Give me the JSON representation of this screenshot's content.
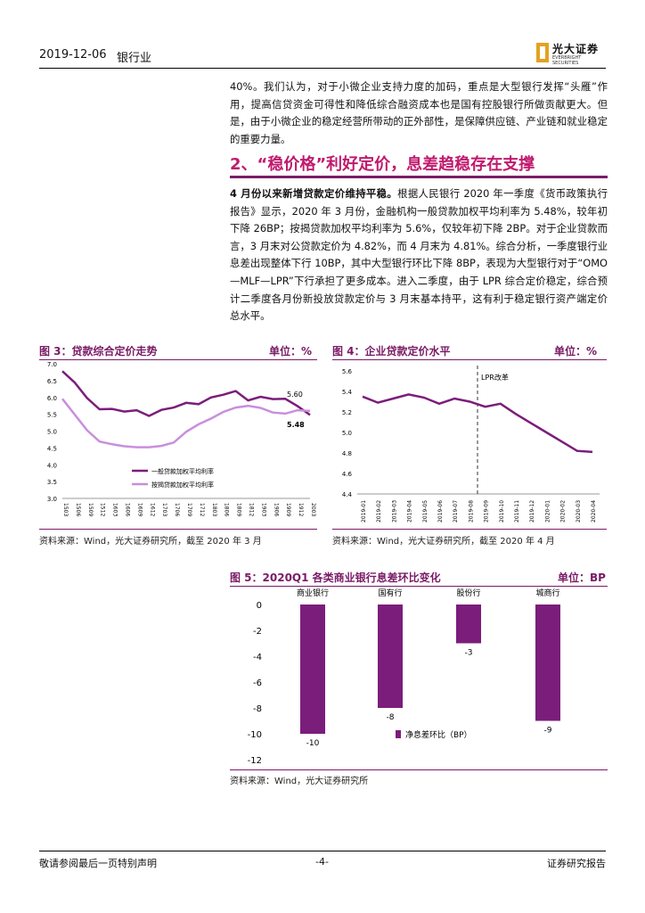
{
  "header": {
    "date": "2019-12-06",
    "industry": "银行业",
    "logo_cn": "光大证券",
    "logo_en": "EVERBRIGHT SECURITIES"
  },
  "intro": {
    "text": "40%。我们认为，对于小微企业支持力度的加码，重点是大型银行发挥“头雁”作用，提高信贷资金可得性和降低综合融资成本也是国有控股银行所做贡献更大。但是，由于小微企业的稳定经营所带动的正外部性，是保障供应链、产业链和就业稳定的重要力量。"
  },
  "section": {
    "heading": "2、“稳价格”利好定价，息差趋稳存在支撑",
    "lead": "4 月份以来新增贷款定价维持平稳。",
    "body": "根据人民银行 2020 年一季度《货币政策执行报告》显示，2020 年 3 月份，金融机构一般贷款加权平均利率为 5.48%，较年初下降 26BP；按揭贷款加权平均利率为 5.6%，仅较年初下降 2BP。对于企业贷款而言，3 月末对公贷款定价为 4.82%，而 4 月末为 4.81%。综合分析，一季度银行业息差出现整体下行 10BP，其中大型银行环比下降 8BP，表现为大型银行对于“OMO—MLF—LPR”下行承担了更多成本。进入二季度，由于 LPR 综合定价稳定，综合预计二季度各月份新投放贷款定价与 3 月末基本持平，这有利于稳定银行资产端定价总水平。"
  },
  "fig3": {
    "title": "图 3：贷款综合定价走势",
    "unit": "单位：%",
    "source": "资料来源：Wind，光大证券研究所，截至 2020 年 3 月",
    "legend": [
      "一般贷款加权平均利率",
      "按揭贷款加权平均利率"
    ]
  },
  "fig4": {
    "title": "图 4：企业贷款定价水平",
    "unit": "单位：%",
    "source": "资料来源：Wind，光大证券研究所，截至 2020 年 4 月",
    "annotation": "LPR改革"
  },
  "fig5": {
    "title": "图 5：2020Q1 各类商业银行息差环比变化",
    "unit": "单位：BP",
    "source": "资料来源：Wind，光大证券研究所",
    "legend": "净息差环比（BP）"
  },
  "footer": {
    "left": "敬请参阅最后一页特别声明",
    "page": "-4-",
    "right": "证券研究报告"
  },
  "colors": {
    "accent": "#7a1b66",
    "heading": "#c01a6e",
    "series_dark": "#7b1d7b",
    "series_light": "#c98fdc"
  },
  "chart_data": [
    {
      "type": "line",
      "x": [
        "1503",
        "1506",
        "1509",
        "1512",
        "1603",
        "1606",
        "1609",
        "1612",
        "1703",
        "1706",
        "1709",
        "1712",
        "1803",
        "1806",
        "1809",
        "1812",
        "1903",
        "1906",
        "1909",
        "1912",
        "2003"
      ],
      "series": [
        {
          "name": "一般贷款加权平均利率",
          "values": [
            6.78,
            6.44,
            5.98,
            5.65,
            5.66,
            5.58,
            5.62,
            5.45,
            5.63,
            5.7,
            5.84,
            5.8,
            6.0,
            6.08,
            6.19,
            5.91,
            6.02,
            5.95,
            5.96,
            5.74,
            5.48
          ]
        },
        {
          "name": "按揭贷款加权平均利率",
          "values": [
            5.96,
            5.49,
            5.02,
            4.69,
            4.61,
            4.55,
            4.52,
            4.52,
            4.56,
            4.66,
            4.98,
            5.2,
            5.37,
            5.57,
            5.7,
            5.75,
            5.69,
            5.55,
            5.52,
            5.62,
            5.6
          ]
        }
      ],
      "labels": [
        "5.60",
        "5.48"
      ],
      "ylim": [
        3.0,
        7.0
      ],
      "yticks": [
        "7.0",
        "6.5",
        "6.0",
        "5.5",
        "5.0",
        "4.5",
        "4.0",
        "3.5",
        "3.0"
      ]
    },
    {
      "type": "line",
      "x": [
        "2019-01",
        "2019-02",
        "2019-03",
        "2019-04",
        "2019-05",
        "2019-06",
        "2019-07",
        "2019-08",
        "2019-09",
        "2019-10",
        "2019-11",
        "2019-12",
        "2020-01",
        "2020-02",
        "2020-03",
        "2020-04"
      ],
      "series": [
        {
          "name": "企业贷款定价",
          "values": [
            5.35,
            5.29,
            5.33,
            5.37,
            5.34,
            5.28,
            5.33,
            5.3,
            5.25,
            5.28,
            5.18,
            5.09,
            5.0,
            4.91,
            4.82,
            4.81
          ]
        }
      ],
      "ylim": [
        4.4,
        5.6
      ],
      "yticks": [
        "5.6",
        "5.4",
        "5.2",
        "5.0",
        "4.8",
        "4.6",
        "4.4"
      ]
    },
    {
      "type": "bar",
      "categories": [
        "商业银行",
        "国有行",
        "股份行",
        "城商行"
      ],
      "series": [
        {
          "name": "净息差环比（BP）",
          "values": [
            -10,
            -8,
            -3,
            -9
          ]
        }
      ],
      "value_labels": [
        "-10",
        "-8",
        "-3",
        "-9"
      ],
      "ylim": [
        -12,
        0
      ],
      "yticks": [
        "0",
        "-2",
        "-4",
        "-6",
        "-8",
        "-10",
        "-12"
      ]
    }
  ]
}
